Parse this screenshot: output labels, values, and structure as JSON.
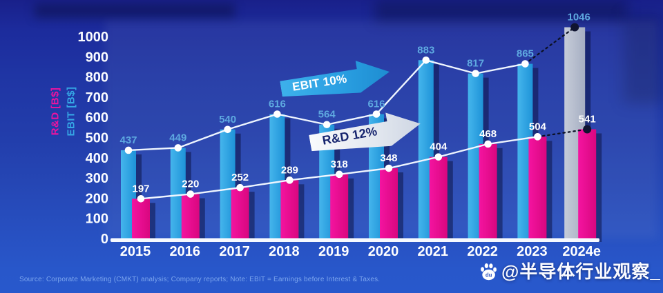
{
  "chart_data": {
    "type": "bar",
    "subtype": "grouped-bars-with-line-and-point-labels",
    "categories": [
      "2015",
      "2016",
      "2017",
      "2018",
      "2019",
      "2020",
      "2021",
      "2022",
      "2023",
      "2024e"
    ],
    "series": [
      {
        "name": "EBIT",
        "axis_label": "EBIT [B$]",
        "bar_color": "#2BA3E4",
        "label_color": "#5EA9E0",
        "values": [
          437,
          449,
          540,
          616,
          564,
          616,
          883,
          817,
          865,
          1046
        ],
        "last_is_forecast": true,
        "forecast_bar_color": "#B4BBCB"
      },
      {
        "name": "R&D",
        "axis_label": "R&D [B$]",
        "bar_color": "#E90D8E",
        "label_color": "#FFFFFF",
        "values": [
          197,
          220,
          252,
          289,
          318,
          348,
          404,
          468,
          504,
          541
        ],
        "last_is_forecast": true
      }
    ],
    "y_axis": {
      "min": 0,
      "max": 1000,
      "step": 100
    },
    "grid": "off",
    "legend_position": "none",
    "line_color": "#EFF6FF",
    "forecast_line_color": "#0C1126",
    "annotations": [
      "EBIT 10%",
      "R&D 12%"
    ]
  },
  "annotations": {
    "ebit_arrow": "EBIT 10%",
    "rnd_arrow": "R&D 12%"
  },
  "footer": {
    "source_note": "Source: Corporate Marketing (CMKT) analysis; Company reports; Note: EBIT = Earnings before Interest & Taxes."
  },
  "watermark": {
    "text": "@半导体行业观察_",
    "icon": "baidu-paw-icon"
  }
}
